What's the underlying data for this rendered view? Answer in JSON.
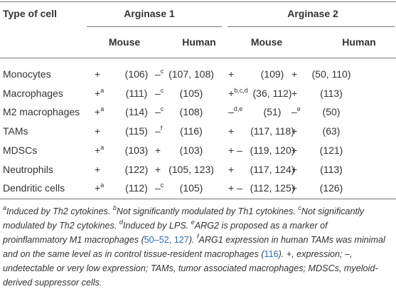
{
  "table": {
    "header": {
      "type_of_cell": "Type of cell",
      "groups": [
        {
          "name": "Arginase 1",
          "columns": [
            "Mouse",
            "Human"
          ]
        },
        {
          "name": "Arginase 2",
          "columns": [
            "Mouse",
            "Human"
          ]
        }
      ]
    },
    "rows": [
      {
        "cell": "Monocytes",
        "values": [
          {
            "sign": "+",
            "ref": "(106)"
          },
          {
            "sign": "–",
            "sup": "c",
            "ref": "(107, 108)"
          },
          {
            "sign": "+",
            "ref": "(109)"
          },
          {
            "sign": "+",
            "ref": "(50, 110)"
          }
        ]
      },
      {
        "cell": "Macrophages",
        "values": [
          {
            "sign": "+",
            "sup": "a",
            "ref": "(111)"
          },
          {
            "sign": "–",
            "sup": "c",
            "ref": "(105)"
          },
          {
            "sign": "+",
            "sup": "b,c,d",
            "ref": "(36, 112)"
          },
          {
            "sign": "+",
            "ref": "(113)"
          }
        ]
      },
      {
        "cell": "M2 macrophages",
        "values": [
          {
            "sign": "+",
            "sup": "a",
            "ref": "(114)"
          },
          {
            "sign": "–",
            "sup": "c",
            "ref": "(108)"
          },
          {
            "sign": "–",
            "sup": "d,e",
            "ref": "(51)"
          },
          {
            "sign": "–",
            "sup": "e",
            "ref": "(50)"
          }
        ]
      },
      {
        "cell": "TAMs",
        "values": [
          {
            "sign": "+",
            "ref": "(115)"
          },
          {
            "sign": "–",
            "sup": "f",
            "ref": "(116)"
          },
          {
            "sign": "+",
            "ref": "(117, 118)"
          },
          {
            "sign": "+",
            "ref": "(63)"
          }
        ]
      },
      {
        "cell": "MDSCs",
        "values": [
          {
            "sign": "+",
            "sup": "a",
            "ref": "(103)"
          },
          {
            "sign": "+",
            "ref": "(103)"
          },
          {
            "sign": "+ –",
            "ref": "(119, 120)"
          },
          {
            "sign": "+",
            "ref": "(121)"
          }
        ]
      },
      {
        "cell": "Neutrophils",
        "values": [
          {
            "sign": "+",
            "ref": "(122)"
          },
          {
            "sign": "+",
            "ref": "(105, 123)"
          },
          {
            "sign": "+",
            "ref": "(117, 124)"
          },
          {
            "sign": "+",
            "ref": "(113)"
          }
        ]
      },
      {
        "cell": "Dendritic cells",
        "values": [
          {
            "sign": "+",
            "sup": "a",
            "ref": "(112)"
          },
          {
            "sign": "–",
            "sup": "c",
            "ref": "(105)"
          },
          {
            "sign": "+ –",
            "ref": "(112, 125)"
          },
          {
            "sign": "+",
            "ref": "(126)"
          }
        ]
      }
    ]
  },
  "footnotes": {
    "notes": [
      {
        "mark": "a",
        "parts": [
          {
            "text": "Induced by Th2 cytokines."
          }
        ]
      },
      {
        "mark": "b",
        "parts": [
          {
            "text": "Not significantly modulated by Th1 cytokines."
          }
        ]
      },
      {
        "mark": "c",
        "parts": [
          {
            "text": "Not significantly modulated by Th2 cytokines."
          }
        ]
      },
      {
        "mark": "d",
        "parts": [
          {
            "text": "Induced by LPS."
          }
        ]
      },
      {
        "mark": "e",
        "parts": [
          {
            "text": "ARG2 is proposed as a marker of proinflammatory M1 macrophages ("
          },
          {
            "ref": "50–52, 127"
          },
          {
            "text": ")."
          }
        ]
      },
      {
        "mark": "f",
        "parts": [
          {
            "text": "ARG1 expression in human TAMs was minimal and on the same level as in control tissue-resident macrophages ("
          },
          {
            "ref": "116"
          },
          {
            "text": ")."
          }
        ]
      }
    ],
    "legend": "+, expression; –, undetectable or very low expression; TAMs, tumor associated macrophages; MDSCs, myeloid-derived suppressor cells."
  }
}
